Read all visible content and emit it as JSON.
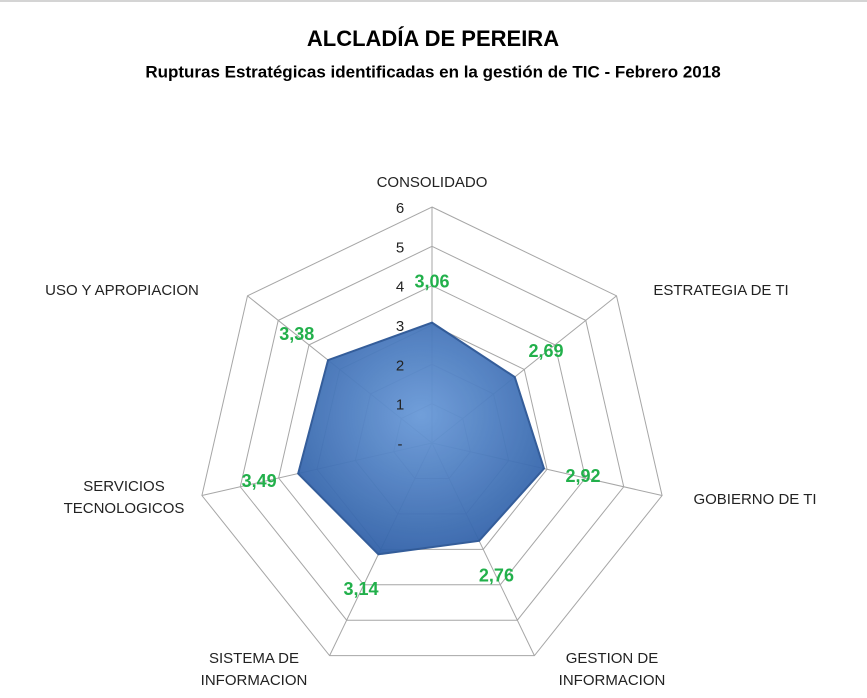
{
  "chart_data": {
    "type": "radar",
    "title": "ALCLADÍA DE PEREIRA",
    "subtitle": "Rupturas Estratégicas identificadas en la gestión de TIC - Febrero 2018",
    "categories": [
      "CONSOLIDADO",
      "ESTRATEGIA DE TI",
      "GOBIERNO DE TI",
      "GESTION DE INFORMACION",
      "SISTEMA DE INFORMACION",
      "SERVICIOS TECNOLOGICOS",
      "USO Y APROPIACION"
    ],
    "values": [
      3.06,
      2.69,
      2.92,
      2.76,
      3.14,
      3.49,
      3.38
    ],
    "value_labels": [
      "3,06",
      "2,69",
      "2,92",
      "2,76",
      "3,14",
      "3,49",
      "3,38"
    ],
    "color": "#4a7cc0",
    "label_color": "#22b04b",
    "rlim": [
      0,
      6
    ],
    "rticks": [
      {
        "value": 0,
        "label": "-"
      },
      1,
      2,
      3,
      4,
      5,
      6
    ],
    "grid": true
  }
}
